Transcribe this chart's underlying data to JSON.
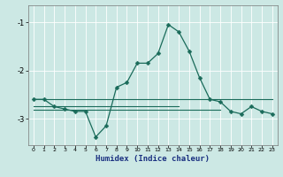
{
  "title": "",
  "xlabel": "Humidex (Indice chaleur)",
  "bg_color": "#cce8e4",
  "grid_color": "#ffffff",
  "line_color": "#1a6b5a",
  "xlim": [
    -0.5,
    23.5
  ],
  "ylim": [
    -3.55,
    -0.65
  ],
  "yticks": [
    -3,
    -2,
    -1
  ],
  "xticks": [
    0,
    1,
    2,
    3,
    4,
    5,
    6,
    7,
    8,
    9,
    10,
    11,
    12,
    13,
    14,
    15,
    16,
    17,
    18,
    19,
    20,
    21,
    22,
    23
  ],
  "series1_x": [
    0,
    1,
    2,
    3,
    4,
    5,
    6,
    7,
    8,
    9,
    10,
    11,
    12,
    13,
    14,
    15,
    16,
    17,
    18,
    19,
    20,
    21,
    22,
    23
  ],
  "series1_y": [
    -2.6,
    -2.6,
    -2.75,
    -2.8,
    -2.85,
    -2.85,
    -3.38,
    -3.15,
    -2.35,
    -2.25,
    -1.85,
    -1.85,
    -1.65,
    -1.05,
    -1.2,
    -1.6,
    -2.15,
    -2.6,
    -2.65,
    -2.85,
    -2.9,
    -2.75,
    -2.85,
    -2.9
  ],
  "series2_x": [
    0,
    23
  ],
  "series2_y": [
    -2.6,
    -2.6
  ],
  "series3_x": [
    0,
    14
  ],
  "series3_y": [
    -2.75,
    -2.75
  ],
  "series4_x": [
    0,
    18
  ],
  "series4_y": [
    -2.82,
    -2.82
  ],
  "marker_size": 2.5
}
